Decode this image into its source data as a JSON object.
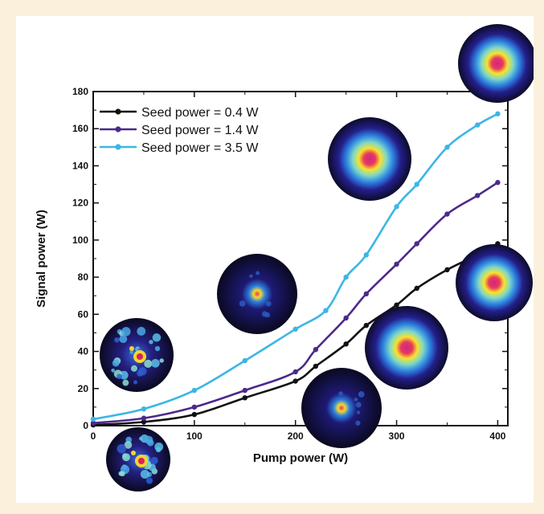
{
  "chart_data": {
    "type": "line",
    "title": "",
    "xlabel": "Pump power (W)",
    "ylabel": "Signal power (W)",
    "xlim": [
      0,
      410
    ],
    "ylim": [
      0,
      180
    ],
    "xticks": [
      0,
      100,
      200,
      300,
      400
    ],
    "yticks": [
      0,
      20,
      40,
      60,
      80,
      100,
      120,
      140,
      160,
      180
    ],
    "grid": false,
    "legend_position": "top-left",
    "series": [
      {
        "name": "Seed power = 0.4 W",
        "color": "#111111",
        "x": [
          0,
          50,
          100,
          150,
          200,
          220,
          250,
          270,
          300,
          320,
          350,
          380,
          400
        ],
        "y": [
          0.4,
          2,
          6,
          15,
          24,
          32,
          44,
          54,
          65,
          74,
          84,
          92,
          98
        ]
      },
      {
        "name": "Seed power = 1.4 W",
        "color": "#4b2a8c",
        "x": [
          0,
          50,
          100,
          150,
          200,
          220,
          250,
          270,
          300,
          320,
          350,
          380,
          400
        ],
        "y": [
          1.4,
          4,
          10,
          19,
          29,
          41,
          58,
          71,
          87,
          98,
          114,
          124,
          131
        ]
      },
      {
        "name": "Seed power = 3.5 W",
        "color": "#3bb6e6",
        "x": [
          0,
          50,
          100,
          150,
          200,
          230,
          250,
          270,
          300,
          320,
          350,
          380,
          400
        ],
        "y": [
          3.5,
          9,
          19,
          35,
          52,
          62,
          80,
          92,
          118,
          130,
          150,
          162,
          168
        ]
      }
    ]
  },
  "beam_profiles": [
    {
      "name": "speckled",
      "speckle": true
    },
    {
      "name": "speckled",
      "speckle": true
    },
    {
      "name": "small-spot",
      "speckle": false
    },
    {
      "name": "small-spot",
      "speckle": false
    },
    {
      "name": "gaussian",
      "speckle": false
    },
    {
      "name": "gaussian",
      "speckle": false
    },
    {
      "name": "gaussian",
      "speckle": false
    },
    {
      "name": "gaussian",
      "speckle": false
    }
  ]
}
